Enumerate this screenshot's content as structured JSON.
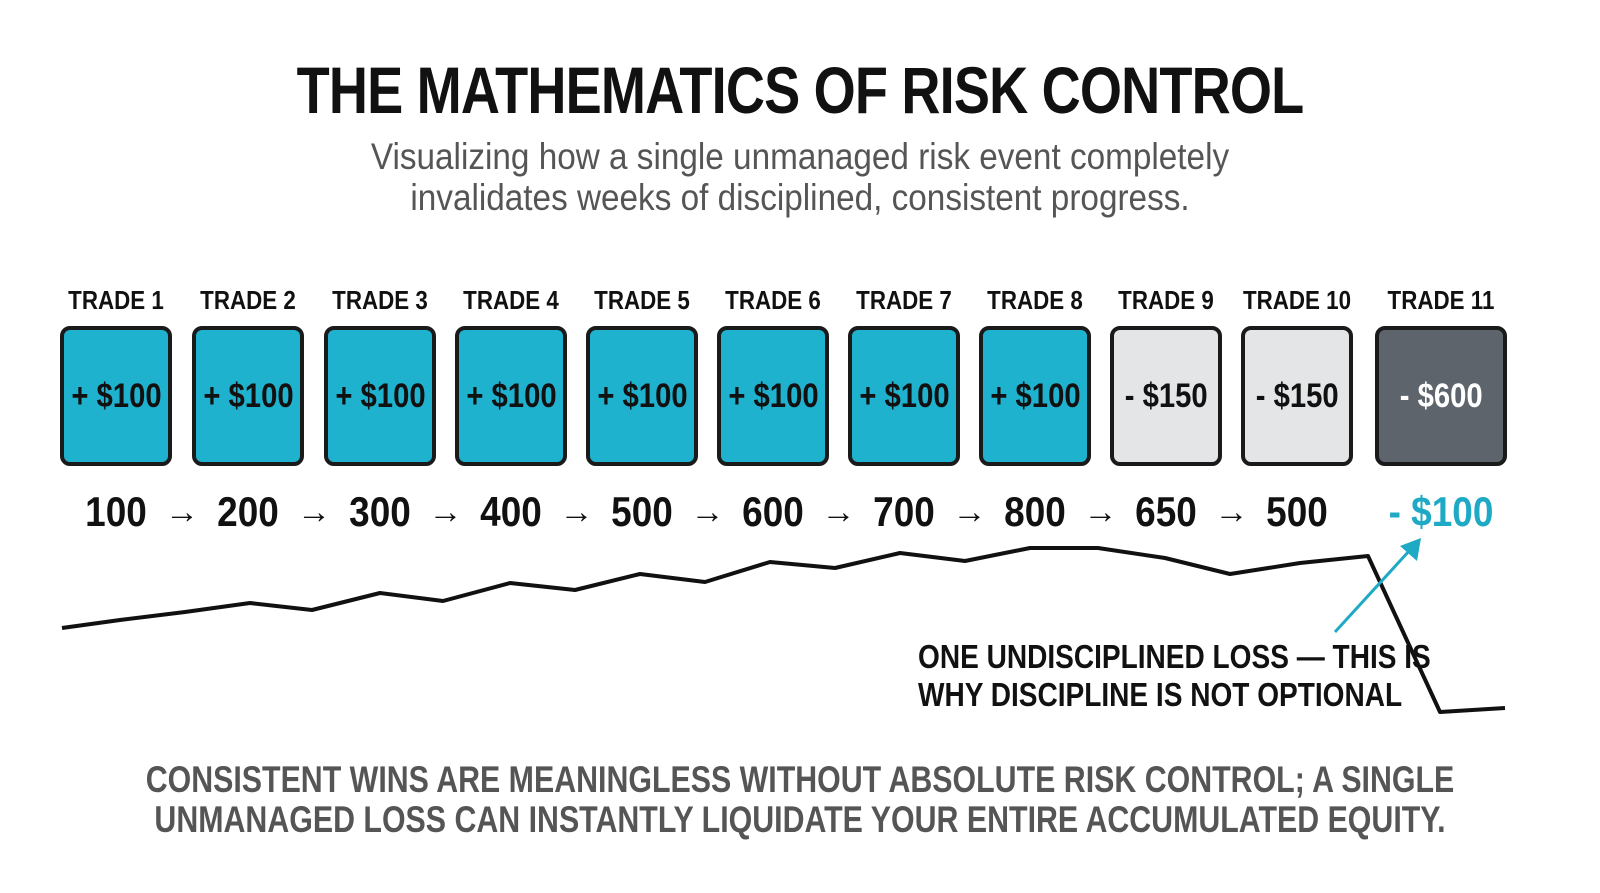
{
  "title": "THE MATHEMATICS OF RISK CONTROL",
  "subtitle": {
    "line1": "Visualizing how a single unmanaged risk event completely",
    "line2": "invalidates weeks of disciplined, consistent progress."
  },
  "trades": [
    {
      "label": "TRADE 1",
      "result": "+ $100",
      "kind": "win"
    },
    {
      "label": "TRADE 2",
      "result": "+ $100",
      "kind": "win"
    },
    {
      "label": "TRADE 3",
      "result": "+ $100",
      "kind": "win"
    },
    {
      "label": "TRADE 4",
      "result": "+ $100",
      "kind": "win"
    },
    {
      "label": "TRADE 5",
      "result": "+ $100",
      "kind": "win"
    },
    {
      "label": "TRADE 6",
      "result": "+ $100",
      "kind": "win"
    },
    {
      "label": "TRADE 7",
      "result": "+ $100",
      "kind": "win"
    },
    {
      "label": "TRADE 8",
      "result": "+ $100",
      "kind": "win"
    },
    {
      "label": "TRADE 9",
      "result": "- $150",
      "kind": "loss"
    },
    {
      "label": "TRADE 10",
      "result": "- $150",
      "kind": "loss"
    },
    {
      "label": "TRADE 11",
      "result": "- $600",
      "kind": "big-loss"
    }
  ],
  "equity_sequence": [
    "100",
    "200",
    "300",
    "400",
    "500",
    "600",
    "700",
    "800",
    "650",
    "500"
  ],
  "arrow_glyph": "→",
  "final_equity": "- $100",
  "callout": {
    "line1": "ONE UNDISCIPLINED LOSS — THIS IS",
    "line2": "WHY DISCIPLINE IS NOT OPTIONAL"
  },
  "footer": {
    "line1": "CONSISTENT WINS ARE MEANINGLESS WITHOUT ABSOLUTE RISK CONTROL; A SINGLE",
    "line2": "UNMANAGED LOSS CAN INSTANTLY LIQUIDATE YOUR ENTIRE ACCUMULATED EQUITY."
  },
  "colors": {
    "win": "#1fb2cf",
    "loss": "#e3e5e7",
    "big_loss": "#5e646c",
    "accent": "#1ea9c4",
    "text": "#111111",
    "muted": "#555555"
  }
}
